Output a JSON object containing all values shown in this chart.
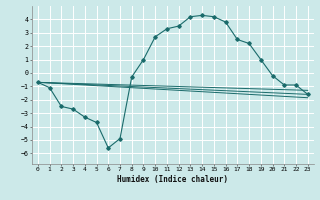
{
  "xlabel": "Humidex (Indice chaleur)",
  "xlim": [
    -0.5,
    23.5
  ],
  "ylim": [
    -6.8,
    5.0
  ],
  "xticks": [
    0,
    1,
    2,
    3,
    4,
    5,
    6,
    7,
    8,
    9,
    10,
    11,
    12,
    13,
    14,
    15,
    16,
    17,
    18,
    19,
    20,
    21,
    22,
    23
  ],
  "yticks": [
    -6,
    -5,
    -4,
    -3,
    -2,
    -1,
    0,
    1,
    2,
    3,
    4
  ],
  "bg_color": "#cce9e9",
  "grid_color": "#ffffff",
  "line_color": "#1a6b6b",
  "line1_x": [
    0,
    1,
    2,
    3,
    4,
    5,
    6,
    7,
    8,
    9,
    10,
    11,
    12,
    13,
    14,
    15,
    16,
    17,
    18,
    19,
    20,
    21,
    22,
    23
  ],
  "line1_y": [
    -0.7,
    -1.1,
    -2.5,
    -2.7,
    -3.3,
    -3.7,
    -5.6,
    -4.9,
    -0.3,
    1.0,
    2.7,
    3.3,
    3.5,
    4.2,
    4.3,
    4.2,
    3.8,
    2.5,
    2.2,
    1.0,
    -0.2,
    -0.9,
    -0.9,
    -1.6
  ],
  "line2_x": [
    0,
    23
  ],
  "line2_y": [
    -0.7,
    -1.6
  ],
  "line3_x": [
    0,
    23
  ],
  "line3_y": [
    -0.7,
    -1.85
  ],
  "line4_x": [
    0,
    23
  ],
  "line4_y": [
    -0.7,
    -1.3
  ]
}
